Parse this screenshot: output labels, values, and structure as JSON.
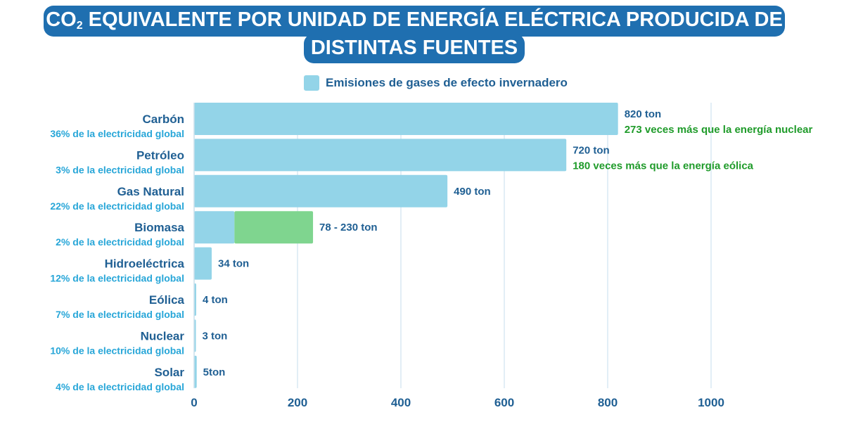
{
  "title": {
    "line1_prefix": "CO",
    "line1_sub": "2",
    "line1_rest": " EQUIVALENTE POR UNIDAD DE ENERGÍA ELÉCTRICA PRODUCIDA DE",
    "line2": "DISTINTAS FUENTES"
  },
  "legend": {
    "label": "Emisiones de gases de efecto invernadero"
  },
  "colors": {
    "bar": "#93d4e8",
    "range": "#7fd58f",
    "title_bg": "#1f6fb0",
    "dark_text": "#1f5f93",
    "share_text": "#27a6d8",
    "note_text": "#1f9b2a",
    "grid": "#d8e9f3"
  },
  "chart_data": {
    "type": "bar",
    "orientation": "horizontal",
    "title": "CO2 EQUIVALENTE POR UNIDAD DE ENERGÍA ELÉCTRICA PRODUCIDA DE DISTINTAS FUENTES",
    "xlim": [
      0,
      1000
    ],
    "ticks": [
      "0",
      "200",
      "400",
      "600",
      "800",
      "1000"
    ],
    "grid": true,
    "legend_position": "top",
    "categories": [
      {
        "name": "Carbón",
        "share": "36% de la electricidad global",
        "value": 820,
        "value_label": "820 ton",
        "note": "273 veces más que la energía nuclear"
      },
      {
        "name": "Petróleo",
        "share": "3% de la electricidad global",
        "value": 720,
        "value_label": "720 ton",
        "note": "180 veces más que la energía eólica"
      },
      {
        "name": "Gas Natural",
        "share": "22% de la electricidad global",
        "value": 490,
        "value_label": "490 ton",
        "note": ""
      },
      {
        "name": "Biomasa",
        "share": "2% de la electricidad global",
        "value": 78,
        "value_max": 230,
        "value_label": "78 - 230 ton",
        "note": ""
      },
      {
        "name": "Hidroeléctrica",
        "share": "12% de la electricidad global",
        "value": 34,
        "value_label": "34 ton",
        "note": ""
      },
      {
        "name": "Eólica",
        "share": "7% de la electricidad global",
        "value": 4,
        "value_label": "4 ton",
        "note": ""
      },
      {
        "name": "Nuclear",
        "share": "10% de la electricidad global",
        "value": 3,
        "value_label": "3 ton",
        "note": ""
      },
      {
        "name": "Solar",
        "share": "4% de la electricidad global",
        "value": 5,
        "value_label": "5ton",
        "note": ""
      }
    ]
  }
}
